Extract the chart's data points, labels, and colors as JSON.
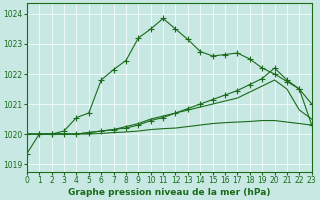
{
  "title": "Graphe pression niveau de la mer (hPa)",
  "bg_color": "#c8e8e4",
  "line_color": "#1a6b1a",
  "xlim": [
    0,
    23
  ],
  "ylim": [
    1018.75,
    1024.35
  ],
  "yticks": [
    1019,
    1020,
    1021,
    1022,
    1023,
    1024
  ],
  "xticks": [
    0,
    1,
    2,
    3,
    4,
    5,
    6,
    7,
    8,
    9,
    10,
    11,
    12,
    13,
    14,
    15,
    16,
    17,
    18,
    19,
    20,
    21,
    22,
    23
  ],
  "series": [
    {
      "x": [
        0,
        1,
        2,
        3,
        4,
        5,
        6,
        7,
        8,
        9,
        10,
        11,
        12,
        13,
        14,
        15,
        16,
        17,
        18,
        19,
        20,
        21,
        22,
        23
      ],
      "y": [
        1019.35,
        1020.0,
        1020.0,
        1020.1,
        1020.55,
        1020.7,
        1021.8,
        1022.15,
        1022.45,
        1023.2,
        1023.5,
        1023.85,
        1023.5,
        1023.15,
        1022.75,
        1022.6,
        1022.65,
        1022.7,
        1022.5,
        1022.2,
        1022.0,
        1021.75,
        1021.5,
        1021.0
      ],
      "marker": "+",
      "lw": 0.8,
      "ms": 4
    },
    {
      "x": [
        0,
        1,
        2,
        3,
        4,
        5,
        6,
        7,
        8,
        9,
        10,
        11,
        12,
        13,
        14,
        15,
        16,
        17,
        18,
        19,
        20,
        21,
        22,
        23
      ],
      "y": [
        1020.0,
        1020.0,
        1020.0,
        1020.0,
        1020.0,
        1020.05,
        1020.1,
        1020.15,
        1020.2,
        1020.3,
        1020.45,
        1020.55,
        1020.7,
        1020.85,
        1021.0,
        1021.15,
        1021.3,
        1021.45,
        1021.65,
        1021.85,
        1022.2,
        1021.8,
        1021.5,
        1020.3
      ],
      "marker": "+",
      "lw": 0.8,
      "ms": 4
    },
    {
      "x": [
        0,
        1,
        2,
        3,
        4,
        5,
        6,
        7,
        8,
        9,
        10,
        11,
        12,
        13,
        14,
        15,
        16,
        17,
        18,
        19,
        20,
        21,
        22,
        23
      ],
      "y": [
        1020.0,
        1020.0,
        1020.0,
        1020.0,
        1020.0,
        1020.05,
        1020.1,
        1020.15,
        1020.25,
        1020.35,
        1020.5,
        1020.6,
        1020.7,
        1020.8,
        1020.9,
        1021.0,
        1021.1,
        1021.2,
        1021.4,
        1021.6,
        1021.8,
        1021.5,
        1020.8,
        1020.5
      ],
      "marker": null,
      "lw": 0.8,
      "ms": 0
    },
    {
      "x": [
        0,
        1,
        2,
        3,
        4,
        5,
        6,
        7,
        8,
        9,
        10,
        11,
        12,
        13,
        14,
        15,
        16,
        17,
        18,
        19,
        20,
        21,
        22,
        23
      ],
      "y": [
        1020.0,
        1020.0,
        1020.0,
        1020.0,
        1020.0,
        1020.0,
        1020.02,
        1020.05,
        1020.07,
        1020.1,
        1020.15,
        1020.18,
        1020.2,
        1020.25,
        1020.3,
        1020.35,
        1020.38,
        1020.4,
        1020.42,
        1020.45,
        1020.45,
        1020.4,
        1020.35,
        1020.3
      ],
      "marker": null,
      "lw": 0.8,
      "ms": 0
    }
  ]
}
